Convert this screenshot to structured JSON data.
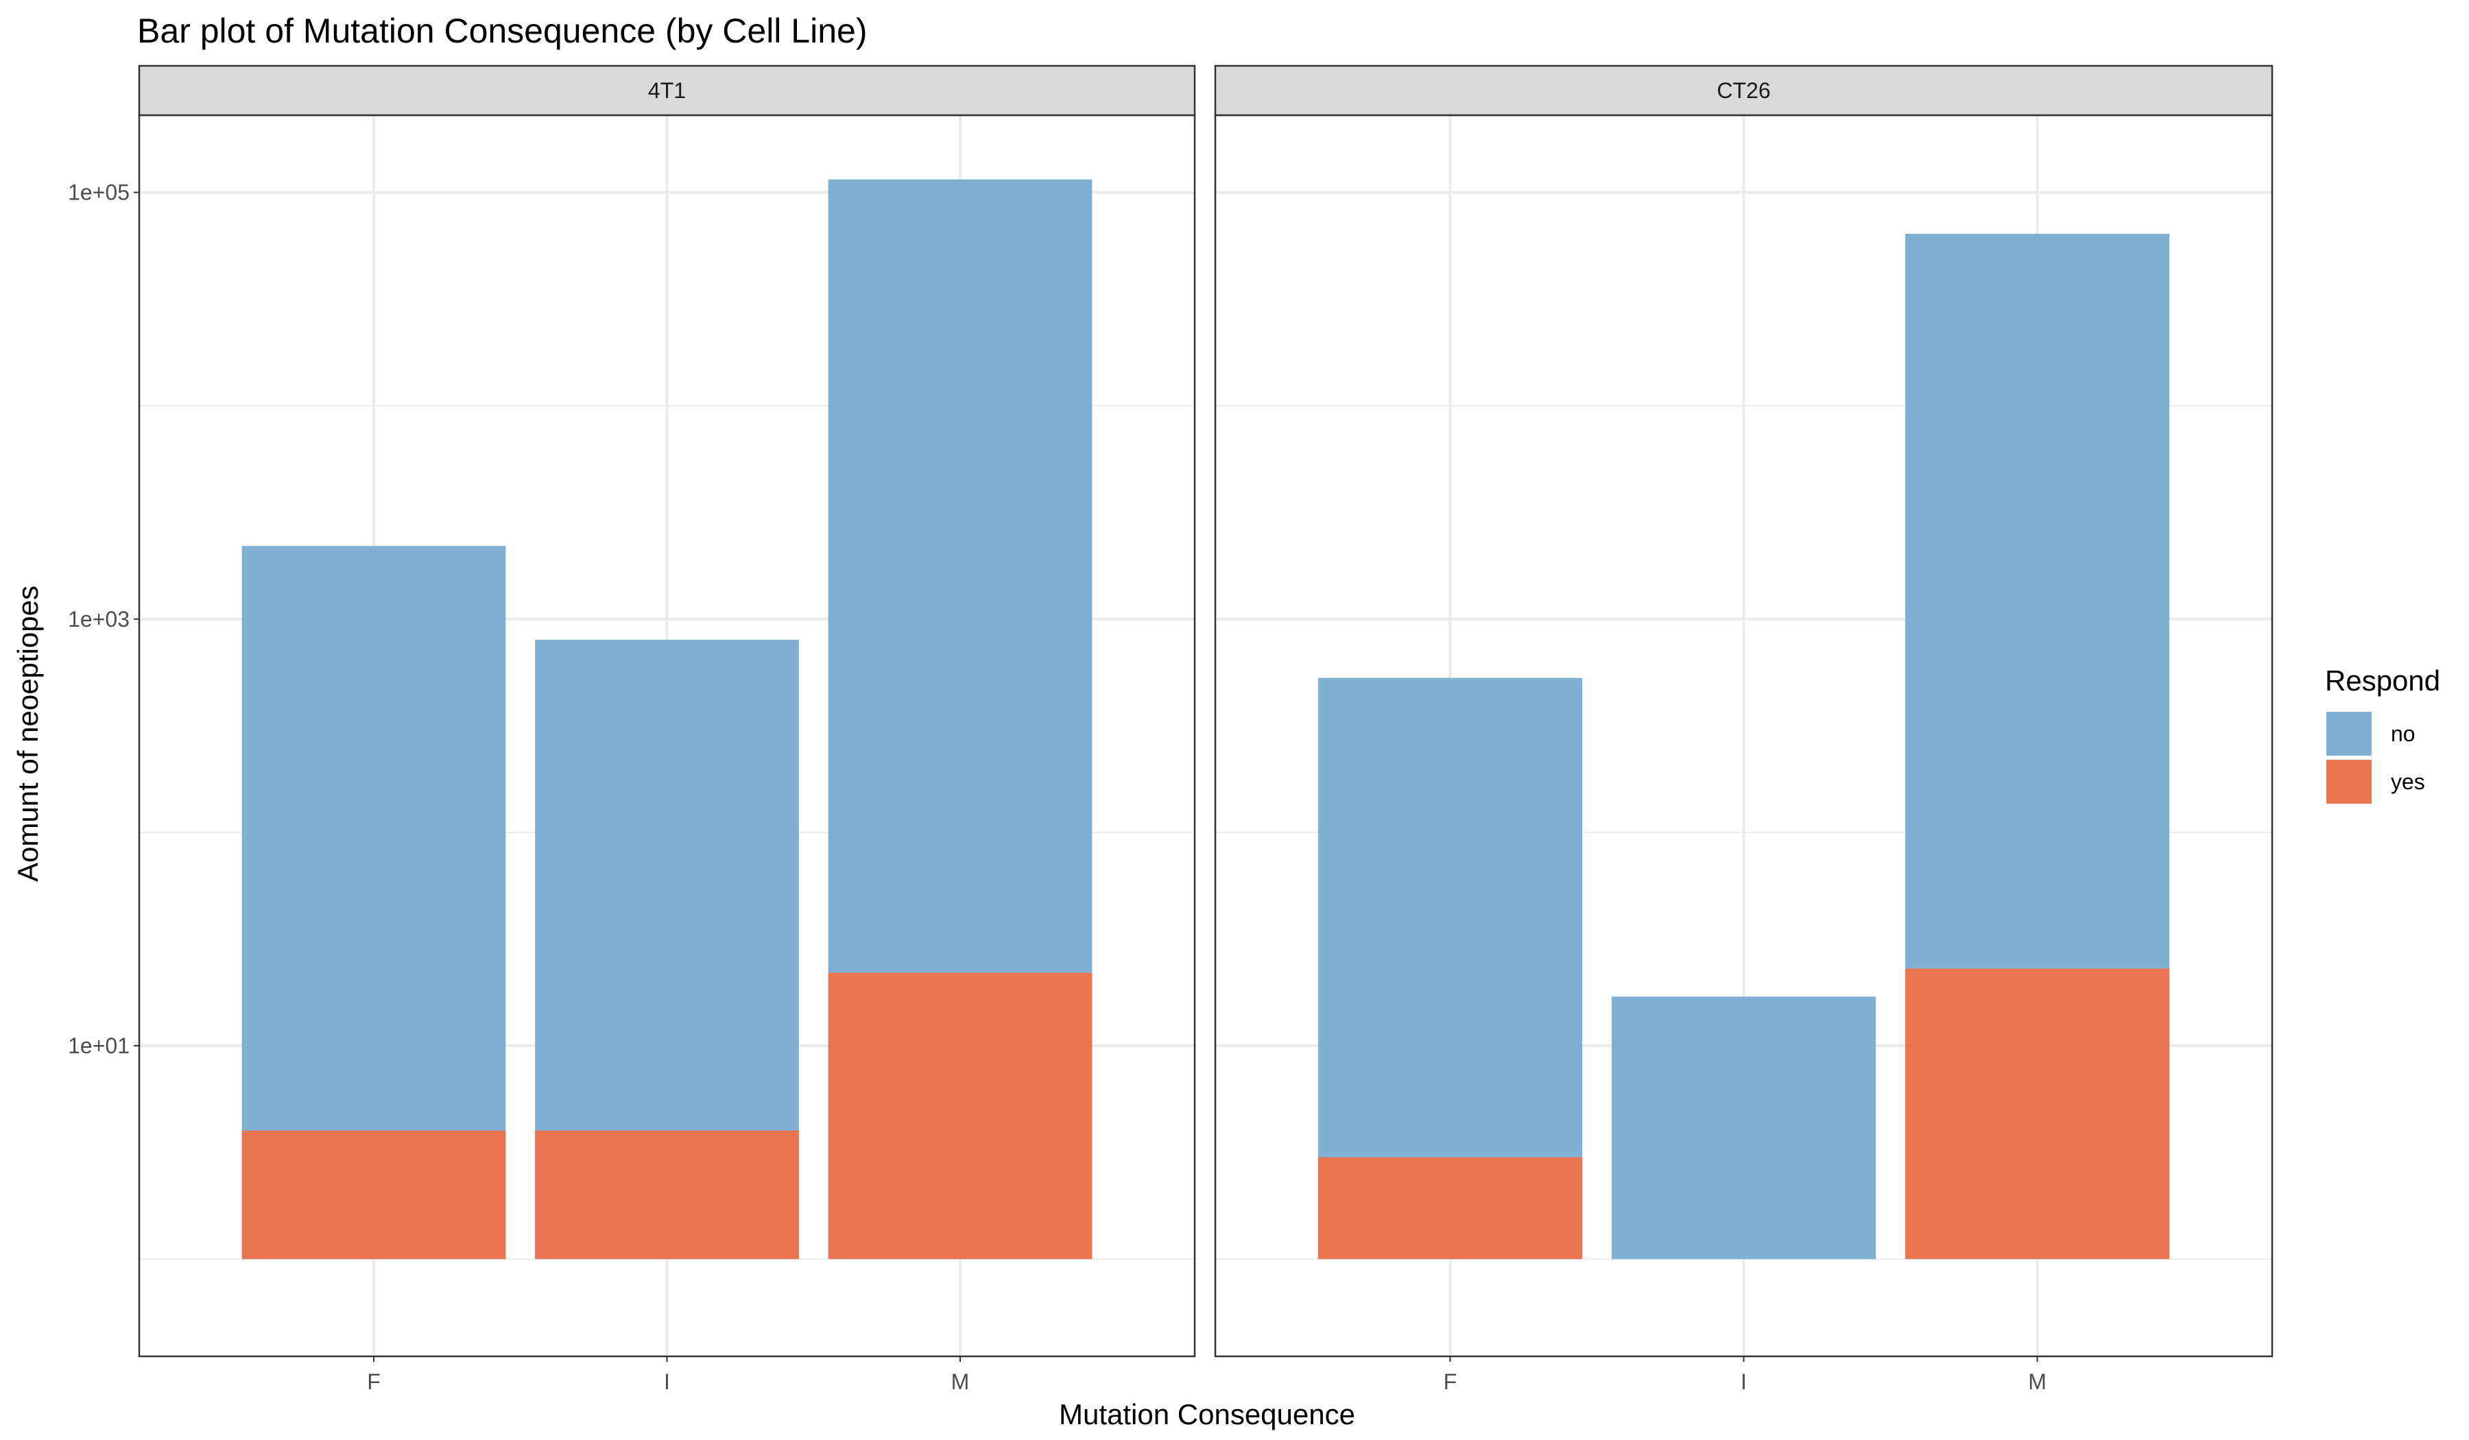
{
  "chart_data": {
    "type": "bar",
    "stacked": true,
    "title": "Bar plot of Mutation Consequence (by Cell Line)",
    "xlabel": "Mutation Consequence",
    "ylabel": "Aomunt of neoeptiopes",
    "yscale": "log10",
    "ylim": [
      0.35,
      230000
    ],
    "yticks": [
      10,
      1000,
      100000
    ],
    "ytick_labels": [
      "1e+01",
      "1e+03",
      "1e+05"
    ],
    "categories": [
      "F",
      "I",
      "M"
    ],
    "grid": true,
    "legend": {
      "title": "Respond",
      "position": "right",
      "entries": [
        {
          "label": "no",
          "color": "#80B0D3"
        },
        {
          "label": "yes",
          "color": "#E97650"
        }
      ]
    },
    "facets": [
      {
        "name": "4T1",
        "bars": [
          {
            "category": "F",
            "yes": 4,
            "total": 2200
          },
          {
            "category": "I",
            "yes": 4,
            "total": 800
          },
          {
            "category": "M",
            "yes": 22,
            "total": 115000
          }
        ]
      },
      {
        "name": "CT26",
        "bars": [
          {
            "category": "F",
            "yes": 3,
            "total": 530
          },
          {
            "category": "I",
            "yes": 0,
            "total": 17
          },
          {
            "category": "M",
            "yes": 23,
            "total": 64000
          }
        ]
      }
    ]
  }
}
